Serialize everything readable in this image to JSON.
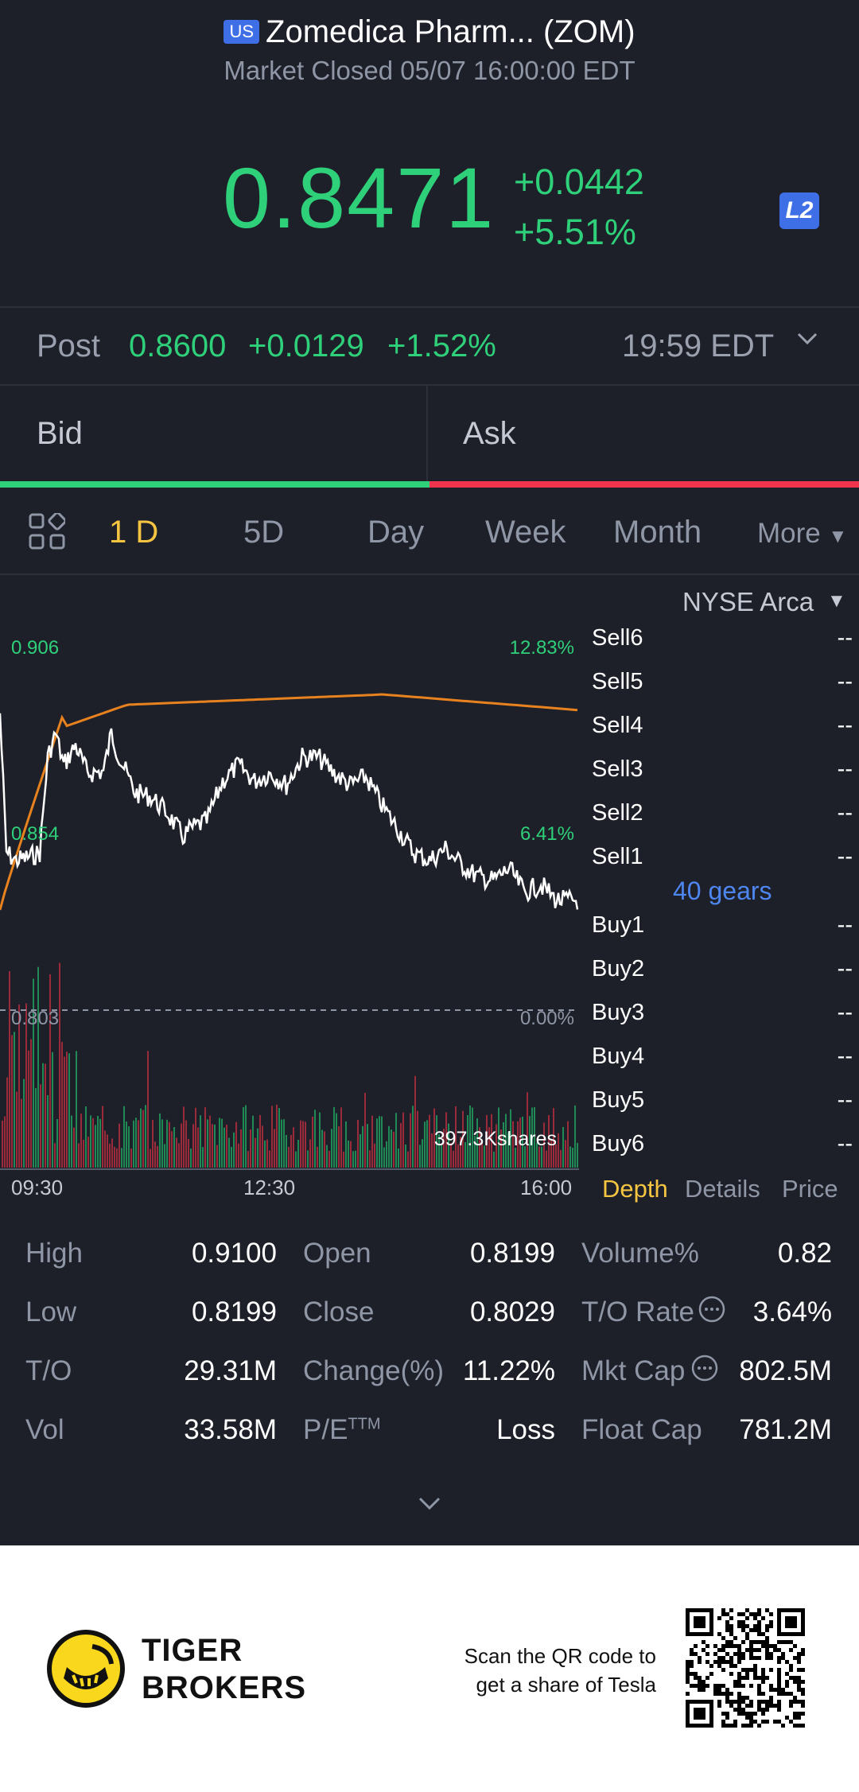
{
  "header": {
    "country_badge": "US",
    "title": "Zomedica Pharm... (ZOM)",
    "status": "Market Closed 05/07 16:00:00 EDT",
    "price": "0.8471",
    "change": "+0.0442",
    "change_pct": "+5.51%",
    "l2_badge": "L2"
  },
  "post_market": {
    "label": "Post",
    "price": "0.8600",
    "change": "+0.0129",
    "change_pct": "+1.52%",
    "time": "19:59 EDT"
  },
  "bid_ask": {
    "bid_label": "Bid",
    "ask_label": "Ask"
  },
  "period_tabs": [
    "1 D",
    "5D",
    "Day",
    "Week",
    "Month",
    "More"
  ],
  "active_tab": "1 D",
  "chart": {
    "exchange": "NYSE Arca",
    "price_high": "0.906",
    "price_mid": "0.854",
    "price_low": "0.803",
    "pct_high": "12.83%",
    "pct_mid": "6.41%",
    "pct_low": "0.00%",
    "volume_label": "397.3Kshares",
    "time_labels": [
      "09:30",
      "12:30",
      "16:00"
    ],
    "colors": {
      "price_line": "#ffffff",
      "avg_line": "#e8821e",
      "up": "#2fd07a",
      "down": "#f0344e"
    }
  },
  "order_book": {
    "sells": [
      "Sell6",
      "Sell5",
      "Sell4",
      "Sell3",
      "Sell2",
      "Sell1"
    ],
    "buys": [
      "Buy1",
      "Buy2",
      "Buy3",
      "Buy4",
      "Buy5",
      "Buy6"
    ],
    "empty_value": "--",
    "gears": "40 gears"
  },
  "sub_tabs": [
    "Depth",
    "Details",
    "Price"
  ],
  "stats": [
    [
      {
        "label": "High",
        "value": "0.9100"
      },
      {
        "label": "Open",
        "value": "0.8199"
      },
      {
        "label": "Volume%",
        "value": "0.82"
      }
    ],
    [
      {
        "label": "Low",
        "value": "0.8199"
      },
      {
        "label": "Close",
        "value": "0.8029"
      },
      {
        "label": "T/O Rate",
        "value": "3.64%"
      }
    ],
    [
      {
        "label": "T/O",
        "value": "29.31M"
      },
      {
        "label": "Change(%)",
        "value": "11.22%"
      },
      {
        "label": "Mkt Cap",
        "value": "802.5M"
      }
    ],
    [
      {
        "label": "Vol",
        "value": "33.58M"
      },
      {
        "label": "P/E",
        "value": "Loss"
      },
      {
        "label": "Float Cap",
        "value": "781.2M"
      }
    ]
  ],
  "pe_superscript": "TTM",
  "footer": {
    "brand_line1": "TIGER",
    "brand_line2": "BROKERS",
    "scan_line1": "Scan the QR code to",
    "scan_line2": "get a share of Tesla"
  }
}
